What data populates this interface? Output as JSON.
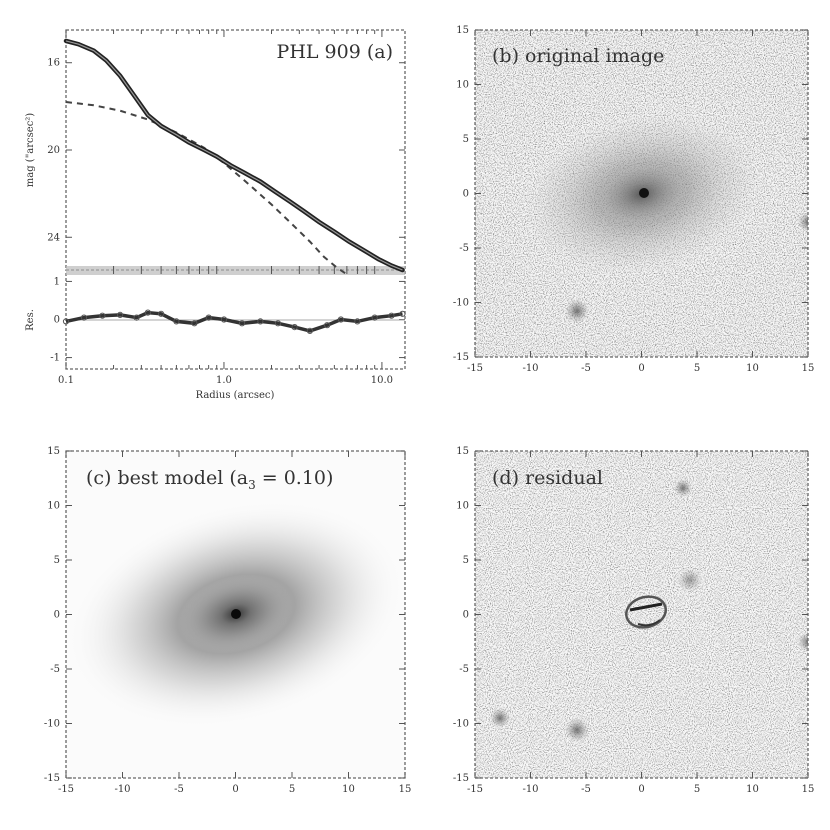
{
  "chart_data": [
    {
      "type": "line",
      "panel": "a",
      "title": "PHL 909 (a)",
      "ylabel_top": "mag (\"arcsec²)",
      "ylabel_bottom": "Res.",
      "xlabel": "Radius (arcsec)",
      "xscale": "log",
      "xlim": [
        0.1,
        14
      ],
      "ylim_top": [
        25.5,
        14.5
      ],
      "ylim_bottom": [
        -1.3,
        1.3
      ],
      "xticks": [
        "0.1",
        "1.0",
        "10.0"
      ],
      "xtick_values": [
        0.1,
        1.0,
        10.0
      ],
      "yticks_top": [
        "16",
        "20",
        "24"
      ],
      "ytick_values_top": [
        16,
        20,
        24
      ],
      "yticks_bottom": [
        "1",
        "0",
        "-1"
      ],
      "ytick_values_bottom": [
        1,
        0,
        -1
      ],
      "series": [
        {
          "role": "data",
          "x": [
            0.1,
            0.12,
            0.15,
            0.18,
            0.22,
            0.27,
            0.33,
            0.4,
            0.5,
            0.6,
            0.75,
            0.9,
            1.1,
            1.35,
            1.7,
            2.1,
            2.6,
            3.2,
            4.0,
            5.0,
            6.2,
            7.7,
            9.5,
            11.5,
            13.5
          ],
          "y": [
            15.0,
            15.15,
            15.45,
            15.9,
            16.6,
            17.5,
            18.4,
            18.9,
            19.3,
            19.65,
            20.0,
            20.3,
            20.7,
            21.05,
            21.45,
            21.9,
            22.35,
            22.8,
            23.3,
            23.75,
            24.2,
            24.6,
            25.0,
            25.3,
            25.5
          ]
        },
        {
          "role": "model-component",
          "x": [
            0.1,
            0.15,
            0.22,
            0.33,
            0.5,
            0.75,
            1.0,
            1.4,
            2.0,
            2.7,
            3.5,
            4.3,
            5.2,
            6.0
          ],
          "y": [
            17.8,
            17.95,
            18.2,
            18.6,
            19.2,
            19.9,
            20.6,
            21.5,
            22.5,
            23.4,
            24.2,
            24.9,
            25.4,
            25.7
          ]
        },
        {
          "role": "residual",
          "x": [
            0.1,
            0.13,
            0.17,
            0.22,
            0.28,
            0.33,
            0.4,
            0.5,
            0.65,
            0.8,
            1.0,
            1.3,
            1.7,
            2.2,
            2.8,
            3.5,
            4.5,
            5.5,
            7.0,
            9.0,
            11.5,
            13.5
          ],
          "y": [
            -0.05,
            0.05,
            0.1,
            0.12,
            0.05,
            0.18,
            0.15,
            -0.05,
            -0.1,
            0.05,
            0.0,
            -0.1,
            -0.05,
            -0.1,
            -0.2,
            -0.3,
            -0.15,
            0.0,
            -0.05,
            0.05,
            0.1,
            0.15
          ]
        }
      ]
    },
    {
      "type": "heatmap",
      "panel": "b",
      "title": "(b) original image",
      "xlim": [
        -15,
        15
      ],
      "ylim": [
        -15,
        15
      ],
      "xticks": [
        "-15",
        "-10",
        "-5",
        "0",
        "5",
        "10",
        "15"
      ],
      "yticks": [
        "15",
        "10",
        "5",
        "0",
        "-5",
        "-10",
        "-15"
      ],
      "features": [
        "central bright point source",
        "diffuse elliptical host galaxy",
        "companion at (-6, -10.5)",
        "source at right edge (15, -2.5)"
      ]
    },
    {
      "type": "heatmap",
      "panel": "c",
      "title": "(c) best model (a",
      "title_sub": "3",
      "title_end": " = 0.10)",
      "xlim": [
        -15,
        15
      ],
      "ylim": [
        -15,
        15
      ],
      "xticks": [
        "-15",
        "-10",
        "-5",
        "0",
        "5",
        "10",
        "15"
      ],
      "yticks": [
        "15",
        "10",
        "5",
        "0",
        "-5",
        "-10",
        "-15"
      ],
      "features": [
        "smooth elliptical model, tilted",
        "central point"
      ]
    },
    {
      "type": "heatmap",
      "panel": "d",
      "title": "(d) residual",
      "xlim": [
        -15,
        15
      ],
      "ylim": [
        -15,
        15
      ],
      "xticks": [
        "-15",
        "-10",
        "-5",
        "0",
        "5",
        "10",
        "15"
      ],
      "yticks": [
        "15",
        "10",
        "5",
        "0",
        "-5",
        "-10",
        "-15"
      ],
      "features": [
        "ring-like residual near center",
        "companion at (-6, -10.5)",
        "source at right edge (15, -2.5)"
      ]
    }
  ]
}
